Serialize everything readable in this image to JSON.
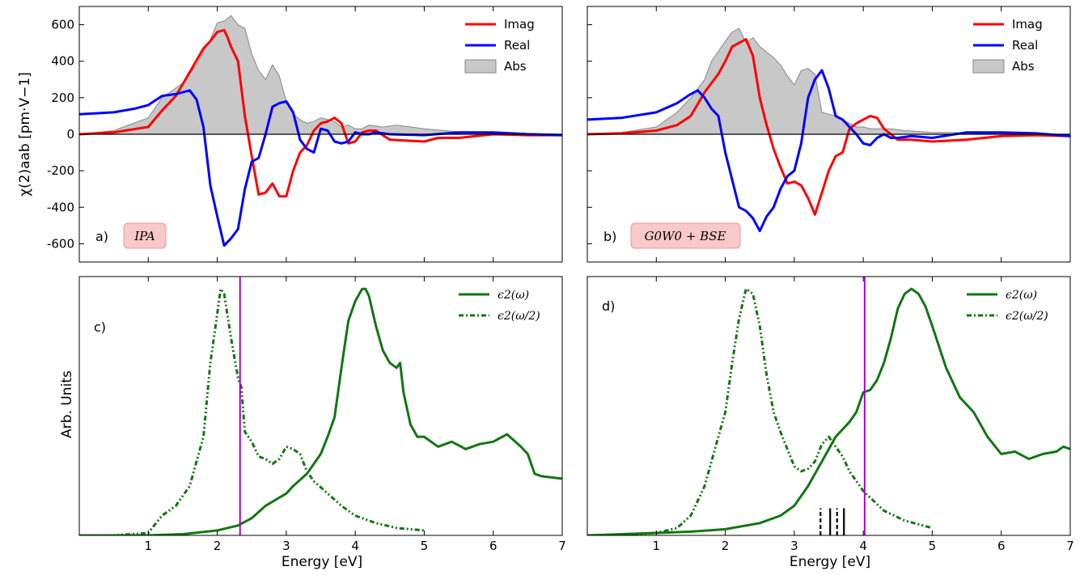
{
  "chart_data": [
    {
      "id": "a",
      "type": "line",
      "panel_label": "a)",
      "method_label": "IPA",
      "ylabel": "χ(2)aab [pm·V−1]",
      "xlim": [
        0,
        7
      ],
      "ylim": [
        -700,
        700
      ],
      "yticks": [
        -600,
        -400,
        -200,
        0,
        200,
        400,
        600
      ],
      "legend_position": "top-right",
      "series": [
        {
          "name": "Imag",
          "color": "#ff0000",
          "x": [
            0,
            0.5,
            1.0,
            1.2,
            1.4,
            1.6,
            1.8,
            1.9,
            2.0,
            2.1,
            2.15,
            2.2,
            2.3,
            2.4,
            2.5,
            2.6,
            2.7,
            2.8,
            2.9,
            3.0,
            3.1,
            3.2,
            3.3,
            3.4,
            3.5,
            3.6,
            3.7,
            3.8,
            3.9,
            4.0,
            4.1,
            4.2,
            4.3,
            4.5,
            5.0,
            5.2,
            5.5,
            6.0,
            6.5,
            7.0
          ],
          "y": [
            0,
            10,
            40,
            130,
            210,
            340,
            470,
            510,
            560,
            570,
            530,
            480,
            400,
            100,
            -120,
            -330,
            -320,
            -270,
            -340,
            -340,
            -200,
            -100,
            -60,
            20,
            60,
            70,
            90,
            60,
            -50,
            -40,
            10,
            20,
            20,
            -30,
            -40,
            -20,
            -20,
            0,
            -5,
            -5
          ]
        },
        {
          "name": "Real",
          "color": "#0000ff",
          "x": [
            0,
            0.5,
            0.8,
            1.0,
            1.2,
            1.4,
            1.6,
            1.7,
            1.8,
            1.9,
            2.0,
            2.1,
            2.2,
            2.3,
            2.4,
            2.5,
            2.6,
            2.7,
            2.8,
            2.9,
            3.0,
            3.1,
            3.2,
            3.3,
            3.4,
            3.5,
            3.6,
            3.7,
            3.8,
            3.9,
            4.0,
            4.1,
            4.2,
            4.3,
            4.5,
            5.0,
            5.5,
            6.0,
            6.5,
            7.0
          ],
          "y": [
            110,
            120,
            140,
            160,
            210,
            220,
            240,
            190,
            40,
            -280,
            -450,
            -610,
            -570,
            -520,
            -300,
            -150,
            -130,
            0,
            150,
            170,
            180,
            120,
            -30,
            -80,
            -100,
            30,
            20,
            -40,
            -50,
            -40,
            10,
            0,
            0,
            10,
            0,
            -5,
            10,
            10,
            0,
            -5
          ]
        },
        {
          "name": "Abs",
          "color": "#c8c8c8",
          "fill": true,
          "x": [
            0,
            0.5,
            1.0,
            1.2,
            1.5,
            1.7,
            1.9,
            2.0,
            2.1,
            2.2,
            2.3,
            2.4,
            2.5,
            2.6,
            2.7,
            2.8,
            2.9,
            3.0,
            3.1,
            3.2,
            3.3,
            3.4,
            3.5,
            3.6,
            3.7,
            3.8,
            3.9,
            4.0,
            4.1,
            4.2,
            4.4,
            4.6,
            5.0,
            5.3,
            5.6,
            6.0,
            6.5,
            7.0
          ],
          "y": [
            0,
            20,
            90,
            200,
            280,
            380,
            520,
            610,
            620,
            650,
            600,
            580,
            440,
            350,
            300,
            380,
            320,
            180,
            110,
            80,
            60,
            70,
            90,
            80,
            70,
            40,
            50,
            30,
            30,
            50,
            40,
            50,
            30,
            20,
            10,
            10,
            5,
            0
          ]
        }
      ]
    },
    {
      "id": "b",
      "type": "line",
      "panel_label": "b)",
      "method_label": "G0W0 + BSE",
      "xlim": [
        0,
        7
      ],
      "ylim": [
        -700,
        700
      ],
      "legend_position": "top-right",
      "series": [
        {
          "name": "Imag",
          "color": "#ff0000",
          "x": [
            0,
            0.5,
            1.0,
            1.3,
            1.5,
            1.7,
            1.9,
            2.0,
            2.1,
            2.2,
            2.3,
            2.4,
            2.5,
            2.6,
            2.7,
            2.8,
            2.9,
            3.0,
            3.1,
            3.2,
            3.3,
            3.4,
            3.5,
            3.6,
            3.7,
            3.8,
            3.9,
            4.0,
            4.1,
            4.2,
            4.3,
            4.5,
            4.7,
            5.0,
            5.5,
            6.0,
            6.5,
            7.0
          ],
          "y": [
            0,
            5,
            20,
            50,
            100,
            230,
            330,
            400,
            480,
            500,
            520,
            430,
            200,
            50,
            -80,
            -180,
            -270,
            -260,
            -280,
            -350,
            -440,
            -320,
            -200,
            -120,
            -100,
            30,
            60,
            80,
            100,
            90,
            30,
            -30,
            -30,
            -40,
            -30,
            -10,
            -5,
            -10
          ]
        },
        {
          "name": "Real",
          "color": "#0000ff",
          "x": [
            0,
            0.5,
            1.0,
            1.3,
            1.5,
            1.6,
            1.7,
            1.8,
            1.9,
            2.0,
            2.1,
            2.2,
            2.3,
            2.4,
            2.5,
            2.6,
            2.7,
            2.8,
            2.9,
            3.0,
            3.1,
            3.2,
            3.3,
            3.4,
            3.5,
            3.6,
            3.7,
            3.8,
            3.9,
            4.0,
            4.1,
            4.2,
            4.3,
            4.4,
            4.5,
            4.7,
            5.0,
            5.5,
            6.0,
            6.5,
            7.0
          ],
          "y": [
            80,
            90,
            120,
            170,
            220,
            240,
            200,
            140,
            100,
            -100,
            -250,
            -400,
            -420,
            -460,
            -530,
            -450,
            -400,
            -300,
            -230,
            -200,
            -50,
            200,
            300,
            350,
            250,
            100,
            80,
            40,
            0,
            -50,
            -60,
            -20,
            0,
            -20,
            -20,
            -10,
            -20,
            10,
            10,
            5,
            -10
          ]
        },
        {
          "name": "Abs",
          "color": "#c8c8c8",
          "fill": true,
          "x": [
            0,
            0.5,
            1.0,
            1.3,
            1.5,
            1.7,
            1.8,
            2.0,
            2.1,
            2.2,
            2.3,
            2.4,
            2.5,
            2.6,
            2.7,
            2.8,
            2.9,
            3.0,
            3.1,
            3.2,
            3.3,
            3.4,
            3.5,
            3.6,
            3.7,
            3.8,
            3.9,
            4.0,
            4.1,
            4.2,
            4.4,
            4.6,
            5.0,
            5.3,
            5.6,
            6.0,
            6.5,
            7.0
          ],
          "y": [
            0,
            10,
            40,
            120,
            200,
            300,
            400,
            510,
            560,
            580,
            500,
            530,
            480,
            450,
            420,
            380,
            320,
            270,
            350,
            360,
            330,
            120,
            110,
            100,
            80,
            60,
            40,
            40,
            30,
            30,
            30,
            20,
            10,
            10,
            5,
            0,
            0,
            0
          ]
        }
      ]
    },
    {
      "id": "c",
      "type": "line",
      "panel_label": "c)",
      "xlabel": "Energy [eV]",
      "ylabel": "Arb. Units",
      "xlim": [
        0,
        7
      ],
      "ylim": [
        0,
        1.05
      ],
      "xticks": [
        1,
        2,
        3,
        4,
        5,
        6,
        7
      ],
      "vline_x": 2.33,
      "vline_color": "#aa00cc",
      "legend_position": "top-right",
      "series": [
        {
          "name": "ϵ2(ω)",
          "color": "#117711",
          "style": "solid",
          "x": [
            0,
            0.5,
            1.0,
            1.5,
            2.0,
            2.3,
            2.5,
            2.7,
            3.0,
            3.1,
            3.3,
            3.5,
            3.6,
            3.7,
            3.8,
            3.9,
            4.0,
            4.1,
            4.15,
            4.2,
            4.3,
            4.4,
            4.5,
            4.6,
            4.65,
            4.7,
            4.8,
            4.9,
            5.0,
            5.2,
            5.4,
            5.6,
            5.8,
            6.0,
            6.2,
            6.4,
            6.5,
            6.6,
            6.7,
            7.0
          ],
          "y": [
            0,
            0,
            0,
            0.005,
            0.02,
            0.04,
            0.07,
            0.12,
            0.17,
            0.2,
            0.25,
            0.33,
            0.4,
            0.48,
            0.68,
            0.87,
            0.95,
            1.0,
            1.0,
            0.97,
            0.85,
            0.75,
            0.7,
            0.68,
            0.7,
            0.58,
            0.45,
            0.4,
            0.4,
            0.36,
            0.38,
            0.35,
            0.37,
            0.38,
            0.41,
            0.36,
            0.33,
            0.25,
            0.24,
            0.23
          ]
        },
        {
          "name": "ϵ2(ω/2)",
          "color": "#117711",
          "style": "dashdot",
          "x": [
            0,
            0.5,
            1.0,
            1.2,
            1.4,
            1.6,
            1.8,
            1.9,
            2.0,
            2.05,
            2.1,
            2.2,
            2.3,
            2.35,
            2.4,
            2.5,
            2.6,
            2.7,
            2.8,
            2.9,
            3.0,
            3.1,
            3.2,
            3.3,
            3.4,
            3.6,
            3.8,
            4.0,
            4.3,
            4.6,
            5.0
          ],
          "y": [
            0,
            0,
            0.01,
            0.08,
            0.12,
            0.2,
            0.4,
            0.7,
            0.9,
            1.0,
            0.98,
            0.8,
            0.64,
            0.6,
            0.42,
            0.38,
            0.32,
            0.31,
            0.29,
            0.31,
            0.36,
            0.35,
            0.33,
            0.26,
            0.22,
            0.17,
            0.12,
            0.08,
            0.05,
            0.03,
            0.02
          ]
        }
      ]
    },
    {
      "id": "d",
      "type": "line",
      "panel_label": "d)",
      "xlabel": "Energy [eV]",
      "xlim": [
        0,
        7
      ],
      "ylim": [
        0,
        1.05
      ],
      "xticks": [
        1,
        2,
        3,
        4,
        5,
        6,
        7
      ],
      "vline_x": 4.02,
      "vline_color": "#aa00cc",
      "stick_x": [
        3.38,
        3.52,
        3.62,
        3.72
      ],
      "stick_height": 0.11,
      "legend_position": "top-right",
      "series": [
        {
          "name": "ϵ2(ω)",
          "color": "#117711",
          "style": "solid",
          "x": [
            0,
            0.5,
            1.0,
            1.5,
            2.0,
            2.5,
            2.8,
            3.0,
            3.2,
            3.4,
            3.6,
            3.8,
            3.9,
            4.0,
            4.1,
            4.2,
            4.3,
            4.4,
            4.5,
            4.6,
            4.7,
            4.8,
            4.9,
            5.0,
            5.2,
            5.4,
            5.6,
            5.8,
            6.0,
            6.2,
            6.4,
            6.6,
            6.8,
            6.9,
            7.0
          ],
          "y": [
            0,
            0.005,
            0.01,
            0.015,
            0.025,
            0.05,
            0.08,
            0.12,
            0.2,
            0.3,
            0.4,
            0.46,
            0.5,
            0.58,
            0.59,
            0.63,
            0.7,
            0.8,
            0.92,
            0.98,
            1.0,
            0.98,
            0.93,
            0.85,
            0.68,
            0.56,
            0.5,
            0.4,
            0.33,
            0.34,
            0.31,
            0.33,
            0.34,
            0.36,
            0.35
          ]
        },
        {
          "name": "ϵ2(ω/2)",
          "color": "#117711",
          "style": "dashdot",
          "x": [
            0,
            0.5,
            1.0,
            1.3,
            1.5,
            1.7,
            1.9,
            2.0,
            2.1,
            2.2,
            2.3,
            2.4,
            2.5,
            2.6,
            2.7,
            2.8,
            2.9,
            3.0,
            3.1,
            3.2,
            3.3,
            3.4,
            3.5,
            3.6,
            3.7,
            3.8,
            4.0,
            4.3,
            4.6,
            5.0
          ],
          "y": [
            0,
            0,
            0.01,
            0.03,
            0.08,
            0.2,
            0.4,
            0.5,
            0.7,
            0.88,
            1.0,
            0.98,
            0.85,
            0.65,
            0.5,
            0.42,
            0.35,
            0.28,
            0.26,
            0.27,
            0.3,
            0.37,
            0.4,
            0.36,
            0.32,
            0.26,
            0.18,
            0.1,
            0.06,
            0.03
          ]
        }
      ]
    }
  ]
}
